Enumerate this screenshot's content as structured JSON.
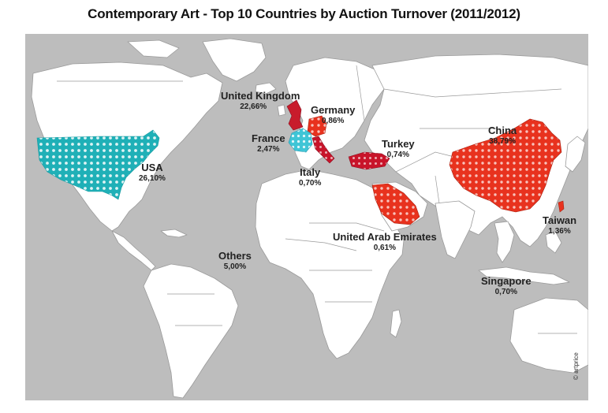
{
  "title": "Contemporary Art - Top 10 Countries by Auction Turnover (2011/2012)",
  "copyright": "© artprice",
  "colors": {
    "ocean": "#bdbdbd",
    "land": "#ffffff",
    "border": "#9a9a9a",
    "usa": "#1fb0b7",
    "france": "#3fc5d6",
    "red": "#e8321e",
    "uk_red": "#c81c2c",
    "italy_red": "#c8142a"
  },
  "countries": [
    {
      "id": "usa",
      "name": "USA",
      "value": "26,10%"
    },
    {
      "id": "uk",
      "name": "United Kingdom",
      "value": "22,66%"
    },
    {
      "id": "germany",
      "name": "Germany",
      "value": "0,86%"
    },
    {
      "id": "france",
      "name": "France",
      "value": "2,47%"
    },
    {
      "id": "italy",
      "name": "Italy",
      "value": "0,70%"
    },
    {
      "id": "turkey",
      "name": "Turkey",
      "value": "0,74%"
    },
    {
      "id": "china",
      "name": "China",
      "value": "38,79%"
    },
    {
      "id": "taiwan",
      "name": "Taiwan",
      "value": "1,36%"
    },
    {
      "id": "uae",
      "name": "United Arab Emirates",
      "value": "0,61%"
    },
    {
      "id": "singapore",
      "name": "Singapore",
      "value": "0,70%"
    },
    {
      "id": "others",
      "name": "Others",
      "value": "5,00%"
    }
  ]
}
